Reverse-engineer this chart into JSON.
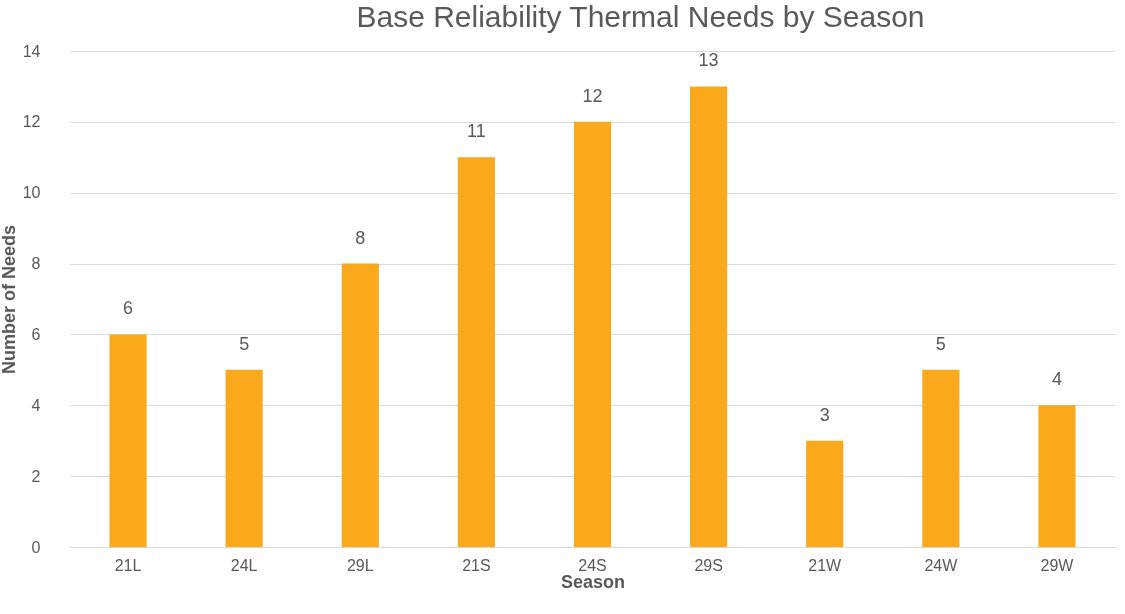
{
  "chart_data": {
    "type": "bar",
    "title": "Base Reliability Thermal Needs by Season",
    "xlabel": "Season",
    "ylabel": "Number of Needs",
    "categories": [
      "21L",
      "24L",
      "29L",
      "21S",
      "24S",
      "29S",
      "21W",
      "24W",
      "29W"
    ],
    "values": [
      6,
      5,
      8,
      11,
      12,
      13,
      3,
      5,
      4
    ],
    "color": "#f9a91b",
    "ylim": [
      0,
      14
    ],
    "yticks": [
      0,
      2,
      4,
      6,
      8,
      10,
      12,
      14
    ],
    "grid": "y",
    "data_labels": true
  }
}
